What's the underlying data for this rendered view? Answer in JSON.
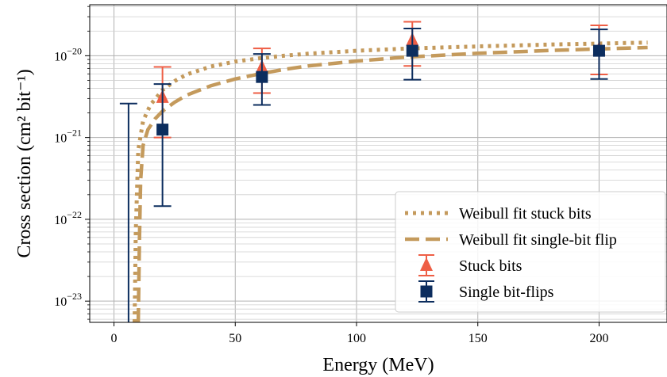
{
  "chart_data": {
    "type": "scatter",
    "xlabel": "Energy (MeV)",
    "ylabel": "Cross section (cm² bit⁻¹)",
    "xlim": [
      -10,
      228
    ],
    "ylim": [
      5.5e-24,
      4.2e-20
    ],
    "yscale": "log",
    "grid": true,
    "legend_location": "lower right",
    "x_ticks": [
      0,
      50,
      100,
      150,
      200
    ],
    "y_tick_exponents": [
      -23,
      -22,
      -21,
      -20
    ],
    "series": [
      {
        "name": "Weibull fit stuck bits",
        "kind": "fit",
        "line_style": "dotted",
        "color": "#c49a5c",
        "x": [
          8.5,
          9,
          10,
          12,
          15,
          20,
          25,
          30,
          40,
          50,
          60,
          70,
          80,
          100,
          120,
          150,
          180,
          200,
          220
        ],
        "y": [
          5.5e-24,
          7e-23,
          7e-22,
          1.6e-21,
          2.5e-21,
          3.8e-21,
          4.9e-21,
          5.9e-21,
          7.4e-21,
          8.5e-21,
          9.3e-21,
          1e-20,
          1.06e-20,
          1.15e-20,
          1.22e-20,
          1.3e-20,
          1.37e-20,
          1.41e-20,
          1.45e-20
        ]
      },
      {
        "name": "Weibull fit single-bit flip",
        "kind": "fit",
        "line_style": "dashed",
        "color": "#c49a5c",
        "x": [
          10,
          10.5,
          11,
          12,
          14,
          17,
          20,
          25,
          30,
          40,
          50,
          60,
          70,
          80,
          100,
          120,
          150,
          180,
          200,
          220
        ],
        "y": [
          5.5e-24,
          5.5e-23,
          3e-22,
          8e-22,
          1.25e-21,
          1.7e-21,
          2.1e-21,
          2.7e-21,
          3.3e-21,
          4.3e-21,
          5.2e-21,
          6e-21,
          6.8e-21,
          7.5e-21,
          8.6e-21,
          9.6e-21,
          1.07e-20,
          1.16e-20,
          1.21e-20,
          1.26e-20
        ]
      },
      {
        "name": "Stuck bits",
        "kind": "points",
        "marker": "triangle",
        "color": "#ee5e45",
        "points": [
          {
            "x": 20,
            "y": 3.1e-21,
            "ylow": 1e-21,
            "yhigh": 7.3e-21
          },
          {
            "x": 61,
            "y": 7.2e-21,
            "ylow": 3.5e-21,
            "yhigh": 1.23e-20
          },
          {
            "x": 123,
            "y": 1.55e-20,
            "ylow": 7.5e-21,
            "yhigh": 2.6e-20
          },
          {
            "x": 200,
            "y": 1.2e-20,
            "ylow": 5.9e-21,
            "yhigh": 2.35e-20
          }
        ]
      },
      {
        "name": "Single bit-flips",
        "kind": "points",
        "marker": "square",
        "color": "#0c2d5e",
        "points": [
          {
            "x": 6,
            "y": null,
            "ylow": 5.5e-24,
            "yhigh": 2.6e-21
          },
          {
            "x": 20,
            "y": 1.25e-21,
            "ylow": 1.45e-22,
            "yhigh": 4.5e-21
          },
          {
            "x": 61,
            "y": 5.5e-21,
            "ylow": 2.5e-21,
            "yhigh": 1.05e-20
          },
          {
            "x": 123,
            "y": 1.15e-20,
            "ylow": 5.1e-21,
            "yhigh": 2.15e-20
          },
          {
            "x": 200,
            "y": 1.15e-20,
            "ylow": 5.2e-21,
            "yhigh": 2.1e-20
          }
        ]
      }
    ]
  }
}
